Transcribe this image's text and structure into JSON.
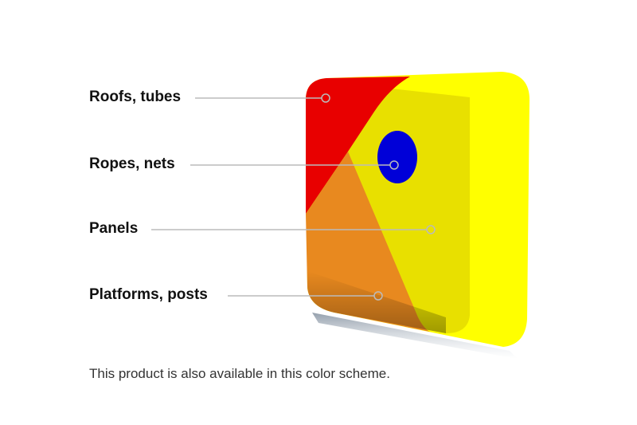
{
  "parts": [
    {
      "label": "Roofs, tubes",
      "color": "#e80000"
    },
    {
      "label": "Ropes, nets",
      "color": "#0000d8"
    },
    {
      "label": "Panels",
      "color": "#e8e000"
    },
    {
      "label": "Platforms, posts",
      "color": "#e8891f"
    }
  ],
  "side_color": "#ffff00",
  "leader_color": "#bbbbbb",
  "note": "This product is also available in this color scheme."
}
